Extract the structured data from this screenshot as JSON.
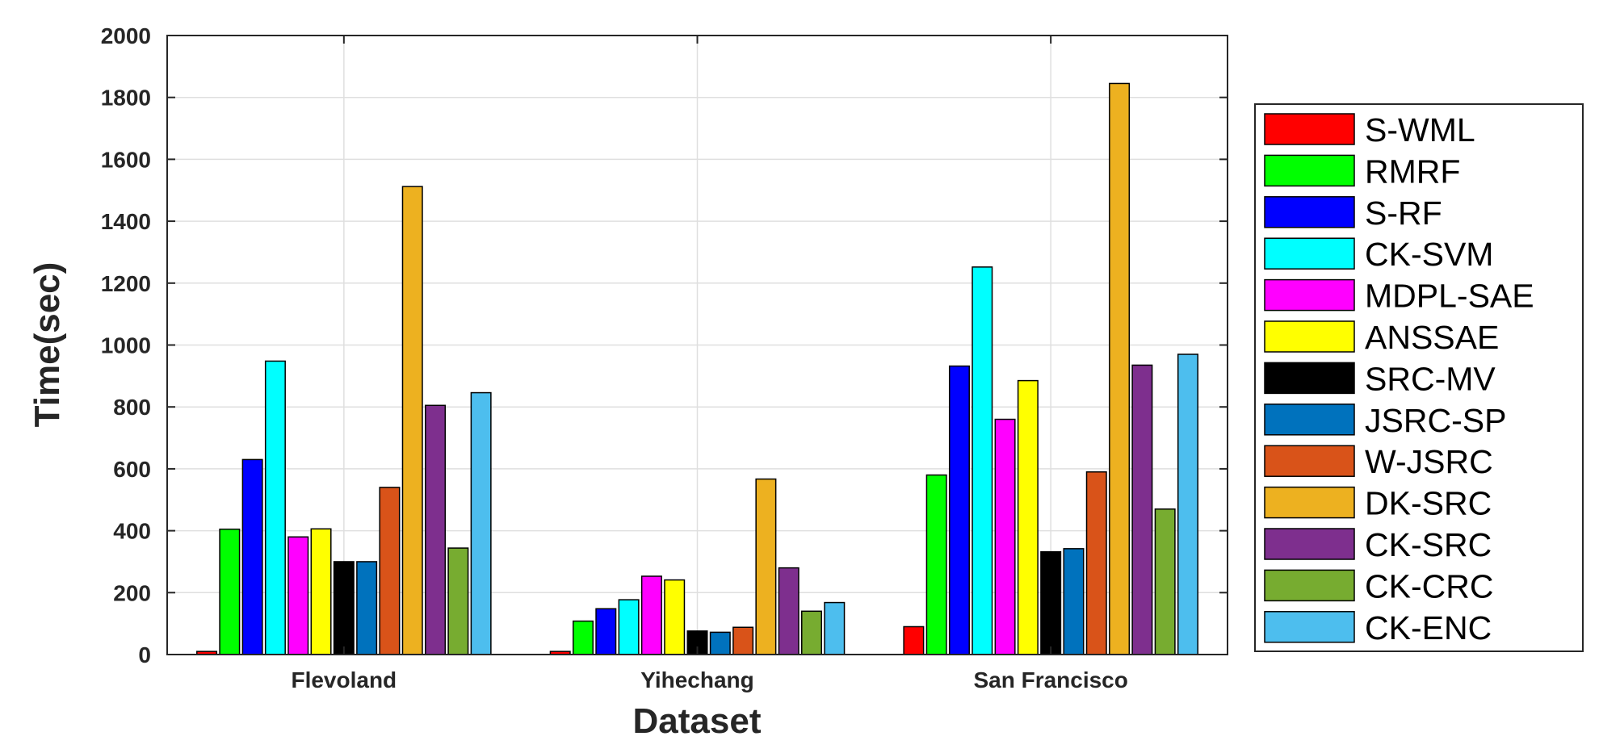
{
  "chart_data": {
    "type": "bar",
    "title": "",
    "xlabel": "Dataset",
    "ylabel": "Time(sec)",
    "ylim": [
      0,
      2000
    ],
    "yticks": [
      0,
      200,
      400,
      600,
      800,
      1000,
      1200,
      1400,
      1600,
      1800,
      2000
    ],
    "grid": true,
    "legend_position": "right",
    "categories": [
      "Flevoland",
      "Yihechang",
      "San Francisco"
    ],
    "series": [
      {
        "name": "S-WML",
        "color": "#ff0000",
        "values": [
          10,
          10,
          90
        ]
      },
      {
        "name": "RMRF",
        "color": "#00ff00",
        "values": [
          405,
          108,
          580
        ]
      },
      {
        "name": "S-RF",
        "color": "#0000ff",
        "values": [
          630,
          148,
          932
        ]
      },
      {
        "name": "CK-SVM",
        "color": "#00ffff",
        "values": [
          948,
          177,
          1252
        ]
      },
      {
        "name": "MDPL-SAE",
        "color": "#ff00ff",
        "values": [
          380,
          253,
          760
        ]
      },
      {
        "name": "ANSSAE",
        "color": "#ffff00",
        "values": [
          406,
          241,
          885
        ]
      },
      {
        "name": "SRC-MV",
        "color": "#000000",
        "values": [
          300,
          76,
          332
        ]
      },
      {
        "name": "JSRC-SP",
        "color": "#0072bd",
        "values": [
          300,
          72,
          342
        ]
      },
      {
        "name": "W-JSRC",
        "color": "#d95319",
        "values": [
          540,
          88,
          590
        ]
      },
      {
        "name": "DK-SRC",
        "color": "#edb120",
        "values": [
          1512,
          567,
          1845
        ]
      },
      {
        "name": "CK-SRC",
        "color": "#7e2f8e",
        "values": [
          805,
          280,
          935
        ]
      },
      {
        "name": "CK-CRC",
        "color": "#77ac30",
        "values": [
          344,
          140,
          470
        ]
      },
      {
        "name": "CK-ENC",
        "color": "#4dbeee",
        "values": [
          846,
          168,
          970
        ]
      }
    ]
  }
}
